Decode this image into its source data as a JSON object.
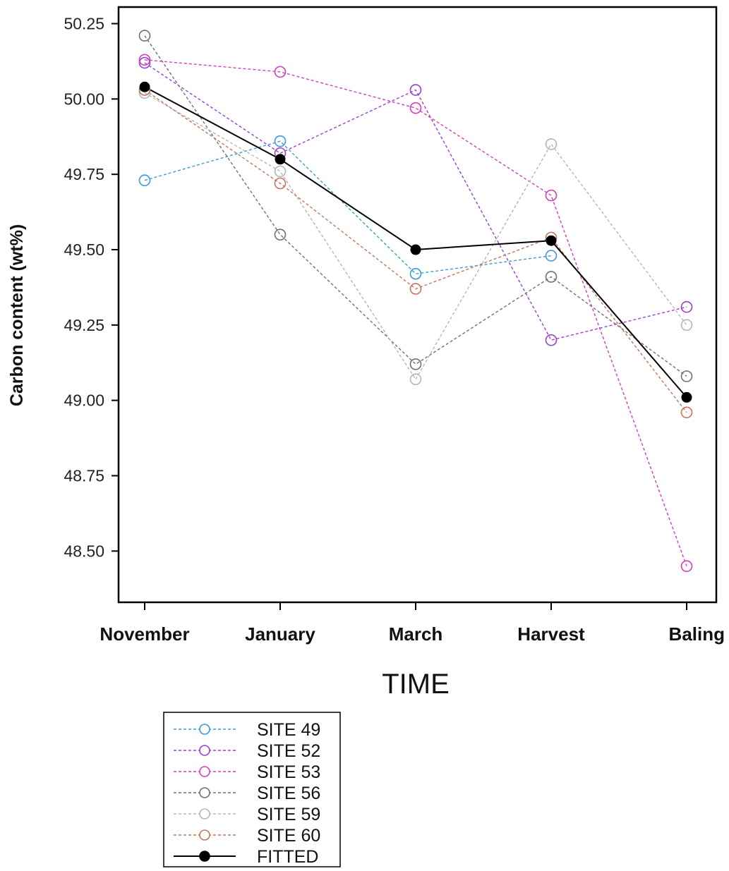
{
  "chart_data": {
    "type": "line",
    "title": "",
    "xlabel": "TIME",
    "ylabel": "Carbon content (wt%)",
    "categories": [
      "November",
      "January",
      "March",
      "Harvest",
      "Baling"
    ],
    "ylim": [
      48.33,
      50.305
    ],
    "yticks": [
      48.5,
      48.75,
      49.0,
      49.25,
      49.5,
      49.75,
      50.0,
      50.25
    ],
    "ytick_labels": [
      "48.50",
      "48.75",
      "49.00",
      "49.25",
      "49.50",
      "49.75",
      "50.00",
      "50.25"
    ],
    "grid": false,
    "legend_position": "bottom-left",
    "series": [
      {
        "name": "SITE 49",
        "color": "#3a9ad9",
        "style": "dotted",
        "marker": "open-circle",
        "values": [
          49.73,
          49.86,
          49.42,
          49.48,
          null
        ]
      },
      {
        "name": "SITE 52",
        "color": "#9b3fd0",
        "style": "dotted",
        "marker": "open-circle",
        "values": [
          50.12,
          49.82,
          50.03,
          49.2,
          49.31
        ]
      },
      {
        "name": "SITE 53",
        "color": "#d63dbd",
        "style": "dotted",
        "marker": "open-circle",
        "values": [
          50.13,
          50.09,
          49.97,
          49.68,
          48.45
        ]
      },
      {
        "name": "SITE 56",
        "color": "#707070",
        "style": "dotted",
        "marker": "open-circle",
        "values": [
          50.21,
          49.55,
          49.12,
          49.41,
          49.08
        ]
      },
      {
        "name": "SITE 59",
        "color": "#b5b5b5",
        "style": "dotted",
        "marker": "open-circle",
        "values": [
          50.02,
          49.76,
          49.07,
          49.85,
          49.25
        ]
      },
      {
        "name": "SITE 60",
        "color": "#c8735a",
        "style": "dotted",
        "marker": "open-circle",
        "values": [
          50.03,
          49.72,
          49.37,
          49.54,
          48.96
        ]
      },
      {
        "name": "FITTED",
        "color": "#000000",
        "style": "solid",
        "marker": "filled-circle",
        "values": [
          50.04,
          49.8,
          49.5,
          49.53,
          49.01
        ]
      }
    ]
  }
}
